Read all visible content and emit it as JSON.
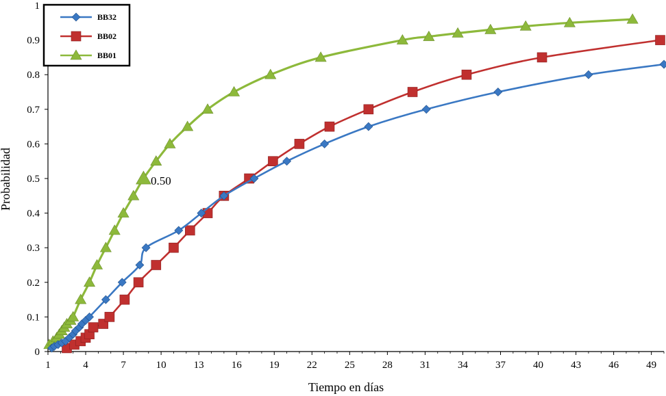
{
  "chart_data": {
    "type": "line",
    "title": "",
    "xlabel": "Tiempo en días",
    "ylabel": "Probabilidad",
    "xlim": [
      1,
      50
    ],
    "ylim": [
      0,
      1
    ],
    "x_ticks": [
      "1",
      "4",
      "7",
      "10",
      "13",
      "16",
      "19",
      "22",
      "25",
      "28",
      "31",
      "34",
      "37",
      "40",
      "43",
      "46",
      "49"
    ],
    "y_ticks": [
      "0",
      "0.1",
      "0.2",
      "0.3",
      "0.4",
      "0.5",
      "0.6",
      "0.7",
      "0.8",
      "0.9",
      "1"
    ],
    "legend_position": "top-left",
    "annotations": [
      {
        "text": "0.50",
        "x": 9.5,
        "y": 0.5
      }
    ],
    "series": [
      {
        "name": "BB32",
        "color": "#3a78c3",
        "marker": "diamond",
        "points": [
          [
            1.3,
            0.01
          ],
          [
            1.5,
            0.015
          ],
          [
            1.8,
            0.02
          ],
          [
            2.1,
            0.025
          ],
          [
            2.4,
            0.03
          ],
          [
            2.7,
            0.04
          ],
          [
            3.0,
            0.05
          ],
          [
            3.2,
            0.06
          ],
          [
            3.5,
            0.07
          ],
          [
            3.7,
            0.08
          ],
          [
            4.0,
            0.09
          ],
          [
            4.3,
            0.1
          ],
          [
            5.6,
            0.15
          ],
          [
            6.9,
            0.2
          ],
          [
            8.3,
            0.25
          ],
          [
            8.8,
            0.3
          ],
          [
            11.4,
            0.35
          ],
          [
            13.2,
            0.4
          ],
          [
            15.0,
            0.45
          ],
          [
            17.4,
            0.5
          ],
          [
            20.0,
            0.55
          ],
          [
            23.0,
            0.6
          ],
          [
            26.5,
            0.65
          ],
          [
            31.1,
            0.7
          ],
          [
            36.8,
            0.75
          ],
          [
            44.0,
            0.8
          ],
          [
            50.0,
            0.83
          ]
        ]
      },
      {
        "name": "BB02",
        "color": "#c0302f",
        "marker": "square",
        "points": [
          [
            2.5,
            0.01
          ],
          [
            3.1,
            0.02
          ],
          [
            3.6,
            0.03
          ],
          [
            4.0,
            0.04
          ],
          [
            4.3,
            0.05
          ],
          [
            4.6,
            0.07
          ],
          [
            5.4,
            0.08
          ],
          [
            5.9,
            0.1
          ],
          [
            7.1,
            0.15
          ],
          [
            8.2,
            0.2
          ],
          [
            9.6,
            0.25
          ],
          [
            11.0,
            0.3
          ],
          [
            12.3,
            0.35
          ],
          [
            13.7,
            0.4
          ],
          [
            15.0,
            0.45
          ],
          [
            17.0,
            0.5
          ],
          [
            18.9,
            0.55
          ],
          [
            21.0,
            0.6
          ],
          [
            23.4,
            0.65
          ],
          [
            26.5,
            0.7
          ],
          [
            30.0,
            0.75
          ],
          [
            34.3,
            0.8
          ],
          [
            40.3,
            0.85
          ],
          [
            49.7,
            0.9
          ]
        ]
      },
      {
        "name": "BB01",
        "color": "#8db93b",
        "marker": "triangle",
        "points": [
          [
            1.1,
            0.02
          ],
          [
            1.4,
            0.03
          ],
          [
            1.7,
            0.04
          ],
          [
            1.9,
            0.05
          ],
          [
            2.1,
            0.06
          ],
          [
            2.3,
            0.07
          ],
          [
            2.5,
            0.08
          ],
          [
            2.8,
            0.09
          ],
          [
            3.0,
            0.1
          ],
          [
            3.6,
            0.15
          ],
          [
            4.3,
            0.2
          ],
          [
            4.9,
            0.25
          ],
          [
            5.6,
            0.3
          ],
          [
            6.3,
            0.35
          ],
          [
            7.0,
            0.4
          ],
          [
            7.8,
            0.45
          ],
          [
            8.6,
            0.5
          ],
          [
            9.6,
            0.55
          ],
          [
            10.7,
            0.6
          ],
          [
            12.1,
            0.65
          ],
          [
            13.7,
            0.7
          ],
          [
            15.8,
            0.75
          ],
          [
            18.7,
            0.8
          ],
          [
            22.7,
            0.85
          ],
          [
            29.2,
            0.9
          ],
          [
            31.3,
            0.91
          ],
          [
            33.6,
            0.92
          ],
          [
            36.2,
            0.93
          ],
          [
            39.0,
            0.94
          ],
          [
            42.5,
            0.95
          ],
          [
            47.5,
            0.96
          ]
        ]
      }
    ]
  }
}
